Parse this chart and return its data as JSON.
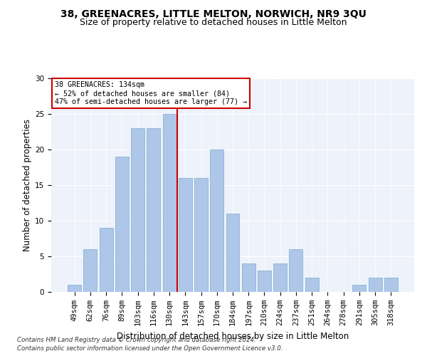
{
  "title": "38, GREENACRES, LITTLE MELTON, NORWICH, NR9 3QU",
  "subtitle": "Size of property relative to detached houses in Little Melton",
  "xlabel": "Distribution of detached houses by size in Little Melton",
  "ylabel": "Number of detached properties",
  "categories": [
    "49sqm",
    "62sqm",
    "76sqm",
    "89sqm",
    "103sqm",
    "116sqm",
    "130sqm",
    "143sqm",
    "157sqm",
    "170sqm",
    "184sqm",
    "197sqm",
    "210sqm",
    "224sqm",
    "237sqm",
    "251sqm",
    "264sqm",
    "278sqm",
    "291sqm",
    "305sqm",
    "318sqm"
  ],
  "values": [
    1,
    6,
    9,
    19,
    23,
    23,
    25,
    16,
    16,
    20,
    11,
    4,
    3,
    4,
    6,
    2,
    0,
    0,
    1,
    2,
    2
  ],
  "bar_color": "#aec6e8",
  "bar_edgecolor": "#8ab4d8",
  "bar_width": 0.85,
  "vline_idx": 6,
  "vline_color": "#cc0000",
  "annotation_title": "38 GREENACRES: 134sqm",
  "annotation_line1": "← 52% of detached houses are smaller (84)",
  "annotation_line2": "47% of semi-detached houses are larger (77) →",
  "annotation_box_color": "#cc0000",
  "ylim": [
    0,
    30
  ],
  "yticks": [
    0,
    5,
    10,
    15,
    20,
    25,
    30
  ],
  "title_fontsize": 10,
  "subtitle_fontsize": 9,
  "xlabel_fontsize": 8.5,
  "ylabel_fontsize": 8.5,
  "tick_fontsize": 7.5,
  "background_color": "#eef2fa",
  "footnote1": "Contains HM Land Registry data © Crown copyright and database right 2024.",
  "footnote2": "Contains public sector information licensed under the Open Government Licence v3.0."
}
